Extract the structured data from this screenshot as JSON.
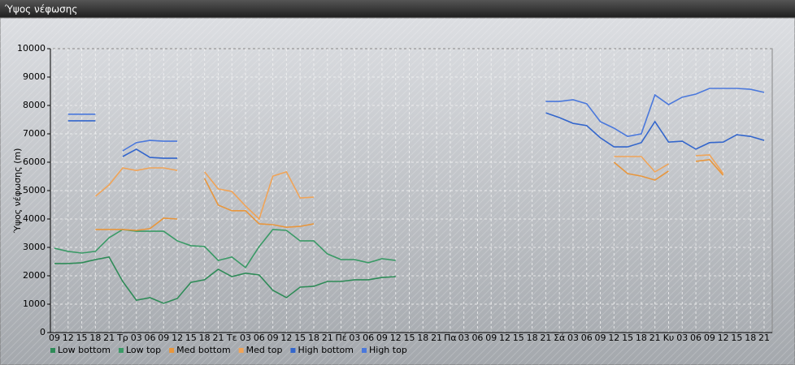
{
  "window_title": "Ύψος νέφωσης",
  "chart_data": {
    "type": "line",
    "y_label": "Ύψος νέφωσης (m)",
    "categories": [
      "09",
      "12",
      "15",
      "18",
      "21",
      "Τρ",
      "03",
      "06",
      "09",
      "12",
      "15",
      "18",
      "21",
      "Τε",
      "03",
      "06",
      "09",
      "12",
      "15",
      "18",
      "21",
      "Πέ",
      "03",
      "06",
      "09",
      "12",
      "15",
      "18",
      "21",
      "Πα",
      "03",
      "06",
      "09",
      "12",
      "15",
      "18",
      "21",
      "Σά",
      "03",
      "06",
      "09",
      "12",
      "15",
      "18",
      "21",
      "Κυ",
      "03",
      "06",
      "09",
      "12",
      "15",
      "18",
      "21"
    ],
    "ylim": [
      0,
      10000
    ],
    "yticks": [
      0,
      1000,
      2000,
      3000,
      4000,
      5000,
      6000,
      7000,
      8000,
      9000,
      10000
    ],
    "grid": true,
    "legend": "bottom-left",
    "series": [
      {
        "name": "Low bottom",
        "color": "#2e8b57",
        "values": [
          2430,
          2430,
          2460,
          2570,
          2660,
          1800,
          1140,
          1230,
          1030,
          1200,
          1770,
          1860,
          2230,
          1970,
          2090,
          2030,
          1490,
          1230,
          1600,
          1630,
          1800,
          1800,
          1860,
          1860,
          1940,
          1970,
          null,
          null,
          null,
          null,
          null,
          null,
          null,
          null,
          null,
          null,
          null,
          null,
          null,
          null,
          null,
          null,
          null,
          null,
          null,
          null,
          null,
          null,
          null,
          null,
          null,
          null,
          null
        ]
      },
      {
        "name": "Low top",
        "color": "#3a9a66",
        "values": [
          2970,
          2860,
          2800,
          2860,
          3340,
          3630,
          3570,
          3570,
          3570,
          3230,
          3060,
          3030,
          2540,
          2660,
          2290,
          3030,
          3630,
          3600,
          3230,
          3230,
          2770,
          2570,
          2570,
          2460,
          2600,
          2540,
          null,
          null,
          null,
          null,
          null,
          null,
          null,
          null,
          null,
          null,
          null,
          null,
          null,
          null,
          null,
          null,
          null,
          null,
          null,
          null,
          null,
          null,
          null,
          null,
          null,
          null,
          null
        ]
      },
      {
        "name": "Med bottom",
        "color": "#e8963c",
        "values": [
          null,
          null,
          null,
          3630,
          3630,
          3630,
          3600,
          3660,
          4030,
          4000,
          null,
          5430,
          4490,
          4290,
          4290,
          3830,
          3800,
          3710,
          3740,
          3830,
          null,
          null,
          null,
          null,
          null,
          null,
          null,
          null,
          null,
          null,
          null,
          null,
          null,
          null,
          null,
          null,
          null,
          null,
          null,
          null,
          null,
          6000,
          5600,
          5510,
          5370,
          5690,
          null,
          6030,
          6090,
          5540,
          null,
          null,
          null
        ]
      },
      {
        "name": "Med top",
        "color": "#f0a458",
        "values": [
          null,
          null,
          null,
          4800,
          5200,
          5800,
          5710,
          5800,
          5800,
          5710,
          null,
          5660,
          5060,
          4970,
          4460,
          4000,
          5510,
          5660,
          4740,
          4770,
          null,
          null,
          null,
          null,
          null,
          null,
          null,
          null,
          null,
          null,
          null,
          null,
          null,
          null,
          null,
          null,
          null,
          null,
          null,
          null,
          null,
          6200,
          6200,
          6200,
          5660,
          5940,
          null,
          6230,
          6260,
          5600,
          null,
          null,
          null
        ]
      },
      {
        "name": "High bottom",
        "color": "#3366cc",
        "values": [
          null,
          7460,
          7460,
          7460,
          null,
          6200,
          6460,
          6170,
          6140,
          6140,
          null,
          null,
          null,
          null,
          null,
          null,
          null,
          null,
          null,
          null,
          null,
          null,
          null,
          null,
          null,
          null,
          null,
          null,
          null,
          null,
          null,
          null,
          null,
          null,
          null,
          null,
          7740,
          7570,
          7370,
          7290,
          6860,
          6540,
          6540,
          6690,
          7430,
          6710,
          6740,
          6460,
          6690,
          6710,
          6970,
          6910,
          6770
        ]
      },
      {
        "name": "High top",
        "color": "#4a78dc",
        "values": [
          null,
          7690,
          7690,
          7690,
          null,
          6400,
          6690,
          6770,
          6740,
          6740,
          null,
          null,
          null,
          null,
          null,
          null,
          null,
          null,
          null,
          null,
          null,
          null,
          null,
          null,
          null,
          null,
          null,
          null,
          null,
          null,
          null,
          null,
          null,
          null,
          null,
          null,
          8140,
          8140,
          8200,
          8060,
          7430,
          7200,
          6910,
          7000,
          8370,
          8030,
          8290,
          8400,
          8600,
          8600,
          8600,
          8570,
          8460
        ]
      }
    ]
  }
}
